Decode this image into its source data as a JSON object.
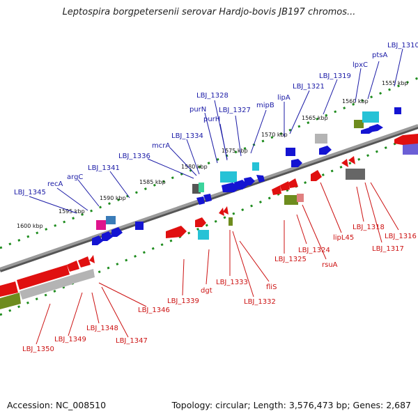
{
  "header": {
    "title": "Leptospira borgpetersenii serovar Hardjo-bovis JB197 chromos..."
  },
  "footer": {
    "accession": "Accession: NC_008510",
    "summary": "Topology: circular; Length: 3,576,473 bp; Genes: 2,687"
  },
  "colors": {
    "backbone": "#808080",
    "forward_gene": "#1414d2",
    "reverse_gene": "#e01010",
    "label_forward": "#1a1aa6",
    "label_reverse": "#cc1111",
    "tick_marks": "#1e8c1e",
    "rna_cyan": "#26c2d6",
    "pseudo_grey": "#b4b4b4",
    "olive": "#6e8c1e",
    "magenta": "#e0148c"
  },
  "scale_ticks": [
    "1555 kbp",
    "1560 kbp",
    "1565 kbp",
    "1570 kbp",
    "1575 kbp",
    "1580 kbp",
    "1585 kbp",
    "1590 kbp",
    "1595 kbp",
    "1600 kbp"
  ],
  "forward_labels": [
    "LBJ_1310",
    "ptsA",
    "lpxC",
    "LBJ_1319",
    "LBJ_1321",
    "lipA",
    "mipB",
    "LBJ_1327",
    "LBJ_1328",
    "purN",
    "purH",
    "mcrA",
    "LBJ_1334",
    "LBJ_1336",
    "LBJ_1341",
    "argC",
    "recA",
    "LBJ_1345"
  ],
  "reverse_labels": [
    "LBJ_1316",
    "LBJ_1317",
    "LBJ_1318",
    "lipL45",
    "rsuA",
    "LBJ_1324",
    "LBJ_1325",
    "fliS",
    "LBJ_1332",
    "LBJ_1333",
    "dgt",
    "LBJ_1339",
    "LBJ_1346",
    "LBJ_1347",
    "LBJ_1348",
    "LBJ_1349",
    "LBJ_1350"
  ]
}
